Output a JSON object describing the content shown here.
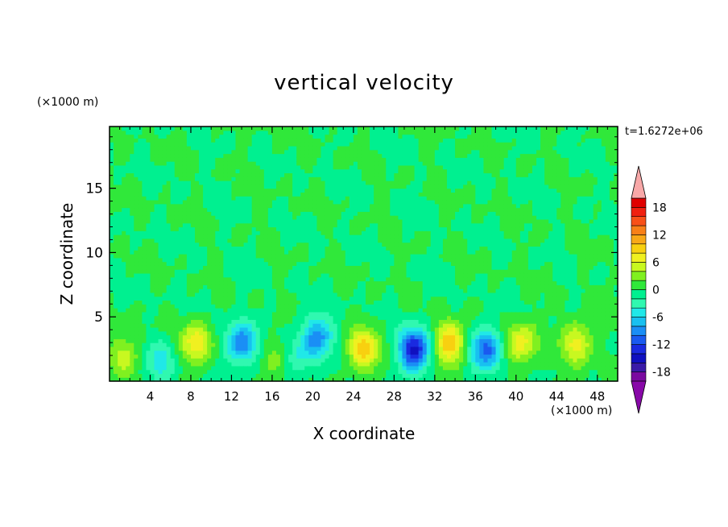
{
  "chart_data": {
    "type": "heatmap",
    "title": "vertical velocity",
    "xlabel": "X coordinate",
    "ylabel": "Z coordinate",
    "x_unit": "(×1000 m)",
    "y_unit": "(×1000 m)",
    "time_label": "t=1.6272e+06",
    "xlim": [
      0,
      50
    ],
    "ylim": [
      0,
      19.8
    ],
    "x_ticks": [
      4,
      8,
      12,
      16,
      20,
      24,
      28,
      32,
      36,
      40,
      44,
      48
    ],
    "y_ticks": [
      5,
      10,
      15
    ],
    "colorbar": {
      "levels": [
        -20,
        -18,
        -16,
        -14,
        -12,
        -10,
        -8,
        -6,
        -4,
        -2,
        0,
        2,
        4,
        6,
        8,
        10,
        12,
        14,
        16,
        18,
        20
      ],
      "tick_labels": [
        "18",
        "12",
        "6",
        "0",
        "-6",
        "-12",
        "-18"
      ],
      "tick_values": [
        18,
        12,
        6,
        0,
        -6,
        -12,
        -18
      ],
      "colors": [
        "#7a0aa0",
        "#3a1aa8",
        "#1010c0",
        "#1a2ae0",
        "#1a5af0",
        "#1a8ef5",
        "#18c0f0",
        "#20e8e8",
        "#30f8b0",
        "#00f090",
        "#30e83a",
        "#80f020",
        "#c8f820",
        "#f0f020",
        "#f8d010",
        "#f8a818",
        "#f88018",
        "#f85018",
        "#f02010",
        "#e00000"
      ],
      "over_color": "#f8a8a8",
      "under_color": "#8808a8"
    },
    "features": [
      {
        "x": 8.5,
        "z": 3.0,
        "w": 7.5
      },
      {
        "x": 13.0,
        "z": 3.0,
        "w": -10.0
      },
      {
        "x": 20.5,
        "z": 3.5,
        "w": -9.0
      },
      {
        "x": 25.0,
        "z": 2.5,
        "w": 9.0
      },
      {
        "x": 30.0,
        "z": 2.5,
        "w": -15.0
      },
      {
        "x": 33.5,
        "z": 3.0,
        "w": 10.0
      },
      {
        "x": 37.0,
        "z": 2.5,
        "w": -11.0
      },
      {
        "x": 40.5,
        "z": 3.0,
        "w": 7.0
      },
      {
        "x": 46.0,
        "z": 3.0,
        "w": 7.0
      },
      {
        "x": 1.5,
        "z": 2.0,
        "w": 4.5
      },
      {
        "x": 5.0,
        "z": 1.5,
        "w": -5.0
      },
      {
        "x": 18.5,
        "z": 2.0,
        "w": -4.0
      },
      {
        "x": 16.5,
        "z": 2.0,
        "w": 3.0
      }
    ]
  }
}
